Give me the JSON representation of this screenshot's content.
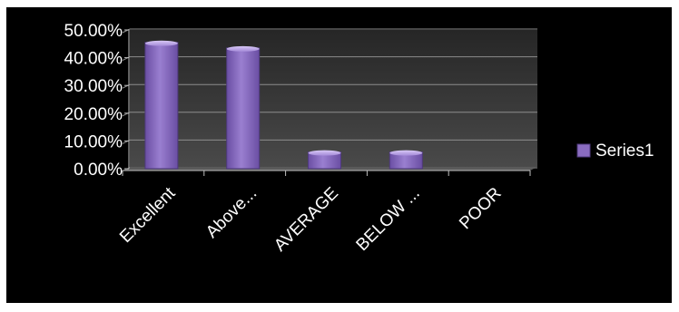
{
  "chart_data": {
    "type": "bar",
    "categories": [
      "Excellent",
      "Above...",
      "AVERAGE",
      "BELOW ...",
      "POOR"
    ],
    "series": [
      {
        "name": "Series1",
        "values": [
          45.5,
          43.5,
          6.0,
          6.0,
          0.0
        ],
        "color": "#8a6cc0"
      }
    ],
    "y_ticks": [
      "0.00%",
      "10.00%",
      "20.00%",
      "30.00%",
      "40.00%",
      "50.00%"
    ],
    "ylim": [
      0,
      50
    ],
    "grid": true,
    "legend_position": "right",
    "background": "#000000",
    "plot_background": "#3c3c3c"
  }
}
